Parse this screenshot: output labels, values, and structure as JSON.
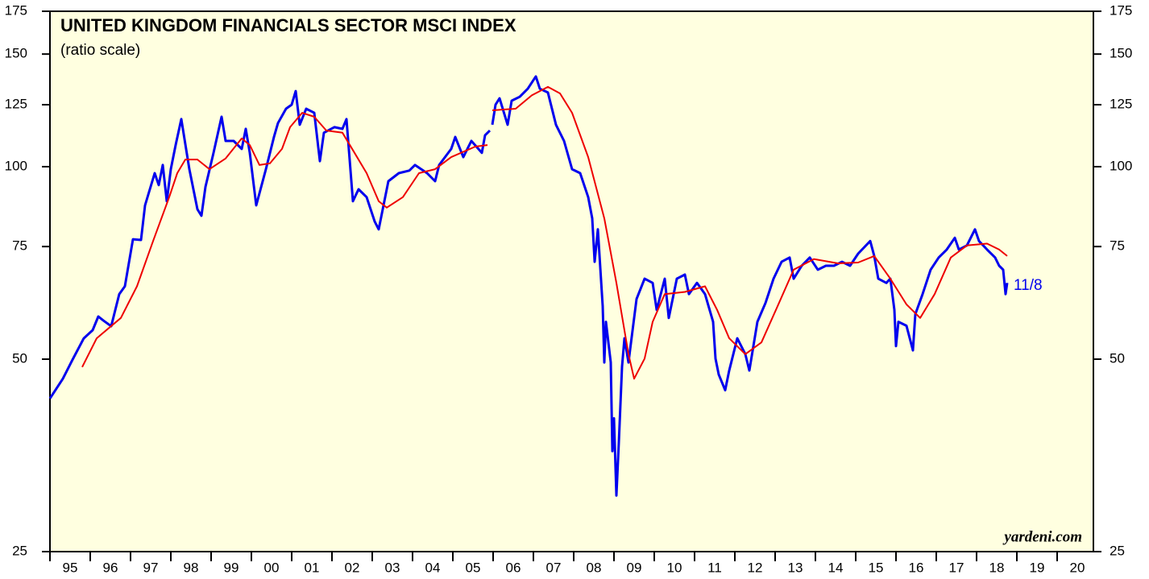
{
  "chart_data": {
    "type": "line",
    "title": "UNITED KINGDOM FINANCIALS SECTOR MSCI INDEX",
    "subtitle": "(ratio scale)",
    "source": "yardeni.com",
    "annotation": "11/8",
    "log_scale": true,
    "background": "#ffffe0",
    "ylim": [
      25,
      175
    ],
    "yticks": [
      25,
      50,
      75,
      100,
      125,
      150,
      175
    ],
    "xlim": [
      1995,
      2020.9
    ],
    "xticks": [
      {
        "value": 1995,
        "label": "95"
      },
      {
        "value": 1996,
        "label": "96"
      },
      {
        "value": 1997,
        "label": "97"
      },
      {
        "value": 1998,
        "label": "98"
      },
      {
        "value": 1999,
        "label": "99"
      },
      {
        "value": 2000,
        "label": "00"
      },
      {
        "value": 2001,
        "label": "01"
      },
      {
        "value": 2002,
        "label": "02"
      },
      {
        "value": 2003,
        "label": "03"
      },
      {
        "value": 2004,
        "label": "04"
      },
      {
        "value": 2005,
        "label": "05"
      },
      {
        "value": 2006,
        "label": "06"
      },
      {
        "value": 2007,
        "label": "07"
      },
      {
        "value": 2008,
        "label": "08"
      },
      {
        "value": 2009,
        "label": "09"
      },
      {
        "value": 2010,
        "label": "10"
      },
      {
        "value": 2011,
        "label": "11"
      },
      {
        "value": 2012,
        "label": "12"
      },
      {
        "value": 2013,
        "label": "13"
      },
      {
        "value": 2014,
        "label": "14"
      },
      {
        "value": 2015,
        "label": "15"
      },
      {
        "value": 2016,
        "label": "16"
      },
      {
        "value": 2017,
        "label": "17"
      },
      {
        "value": 2018,
        "label": "18"
      },
      {
        "value": 2019,
        "label": "19"
      },
      {
        "value": 2020,
        "label": "20"
      }
    ],
    "series": [
      {
        "color": "#0000ee",
        "width": 3,
        "x": [
          1995.0,
          1995.32,
          1995.56,
          1995.84,
          1996.06,
          1996.2,
          1996.32,
          1996.52,
          1996.72,
          1996.86,
          1997.06,
          1997.26,
          1997.36,
          1997.6,
          1997.7,
          1997.8,
          1997.9,
          1998.0,
          1998.12,
          1998.26,
          1998.46,
          1998.66,
          1998.76,
          1998.86,
          1999.06,
          1999.26,
          1999.36,
          1999.56,
          1999.76,
          1999.86,
          1999.96,
          2000.12,
          2000.36,
          2000.56,
          2000.66,
          2000.86,
          2001.0,
          2001.1,
          2001.2,
          2001.36,
          2001.56,
          2001.7,
          2001.8,
          2002.06,
          2002.26,
          2002.36,
          2002.52,
          2002.66,
          2002.86,
          2003.06,
          2003.16,
          2003.4,
          2003.66,
          2003.92,
          2004.06,
          2004.36,
          2004.56,
          2004.66,
          2004.96,
          2005.06,
          2005.26,
          2005.46,
          2005.72,
          2005.8,
          2005.92,
          2005.95,
          2005.98,
          2006.06,
          2006.16,
          2006.36,
          2006.46,
          2006.66,
          2006.86,
          2007.06,
          2007.16,
          2007.36,
          2007.56,
          2007.76,
          2007.96,
          2008.16,
          2008.36,
          2008.46,
          2008.52,
          2008.6,
          2008.72,
          2008.76,
          2008.8,
          2008.92,
          2008.96,
          2009.0,
          2009.06,
          2009.12,
          2009.2,
          2009.26,
          2009.36,
          2009.56,
          2009.76,
          2009.96,
          2010.06,
          2010.26,
          2010.36,
          2010.56,
          2010.76,
          2010.86,
          2011.06,
          2011.26,
          2011.46,
          2011.52,
          2011.6,
          2011.76,
          2011.86,
          2012.06,
          2012.26,
          2012.36,
          2012.56,
          2012.76,
          2012.96,
          2013.16,
          2013.36,
          2013.46,
          2013.66,
          2013.86,
          2014.06,
          2014.26,
          2014.46,
          2014.66,
          2014.86,
          2015.06,
          2015.36,
          2015.46,
          2015.56,
          2015.76,
          2015.86,
          2015.96,
          2016.0,
          2016.06,
          2016.26,
          2016.42,
          2016.48,
          2016.66,
          2016.86,
          2017.06,
          2017.26,
          2017.46,
          2017.56,
          2017.76,
          2017.96,
          2018.06,
          2018.26,
          2018.46,
          2018.56,
          2018.66,
          2018.72,
          2018.76
        ],
        "values": [
          43.4,
          46.6,
          49.9,
          53.9,
          55.5,
          58.3,
          57.5,
          56.3,
          63.2,
          65.0,
          77.0,
          76.8,
          87.0,
          97.7,
          93.6,
          100.6,
          88.3,
          99.1,
          108.1,
          118.7,
          99.1,
          85.8,
          83.8,
          93.0,
          105.1,
          119.7,
          109.7,
          109.7,
          106.6,
          114.6,
          105.1,
          87.0,
          99.1,
          111.3,
          117.0,
          123.2,
          125.0,
          131.3,
          116.3,
          123.2,
          121.4,
          102.0,
          113.0,
          115.3,
          114.6,
          118.7,
          88.3,
          92.2,
          89.6,
          82.1,
          79.8,
          94.9,
          97.7,
          98.6,
          100.6,
          97.7,
          94.9,
          100.6,
          106.6,
          111.3,
          103.5,
          109.7,
          105.1,
          112.0,
          113.9,
          null,
          116.3,
          125.0,
          127.9,
          116.3,
          126.8,
          128.6,
          132.4,
          138.4,
          132.4,
          130.6,
          116.3,
          109.7,
          99.1,
          97.7,
          89.6,
          83.0,
          71.0,
          79.8,
          60.5,
          49.4,
          57.2,
          49.4,
          35.9,
          40.4,
          30.6,
          37.0,
          48.7,
          53.9,
          49.4,
          62.1,
          66.8,
          65.8,
          59.7,
          66.8,
          58.0,
          66.8,
          67.8,
          63.2,
          65.8,
          63.2,
          57.2,
          50.1,
          47.3,
          44.7,
          48.0,
          53.9,
          50.9,
          48.0,
          57.2,
          61.2,
          66.8,
          71.0,
          72.1,
          66.8,
          70.0,
          72.1,
          69.0,
          70.0,
          70.0,
          71.0,
          70.0,
          73.1,
          76.5,
          72.5,
          66.8,
          65.8,
          66.8,
          59.7,
          52.4,
          57.2,
          56.4,
          51.6,
          58.8,
          63.2,
          69.0,
          72.1,
          74.2,
          77.4,
          74.2,
          75.3,
          79.8,
          76.5,
          74.2,
          72.1,
          70.0,
          69.0,
          63.2,
          65.8
        ]
      },
      {
        "color": "#ee0000",
        "width": 2,
        "x": [
          1995.8,
          1996.16,
          1996.76,
          1997.16,
          1997.56,
          1997.96,
          1998.16,
          1998.36,
          1998.66,
          1998.96,
          1999.36,
          1999.76,
          1999.96,
          2000.2,
          2000.46,
          2000.76,
          2000.96,
          2001.26,
          2001.56,
          2001.86,
          2002.26,
          2002.56,
          2002.86,
          2003.16,
          2003.36,
          2003.76,
          2004.16,
          2004.56,
          2004.96,
          2005.56,
          2005.86,
          2005.95,
          2005.98,
          2006.56,
          2006.96,
          2007.36,
          2007.66,
          2007.96,
          2008.36,
          2008.76,
          2009.06,
          2009.36,
          2009.5,
          2009.76,
          2009.96,
          2010.26,
          2010.76,
          2011.26,
          2011.56,
          2011.86,
          2012.26,
          2012.66,
          2013.06,
          2013.46,
          2013.96,
          2014.56,
          2015.06,
          2015.46,
          2015.86,
          2016.26,
          2016.6,
          2016.96,
          2017.36,
          2017.76,
          2018.26,
          2018.56,
          2018.76
        ],
        "values": [
          48.6,
          53.9,
          58.0,
          65.0,
          76.5,
          89.6,
          97.7,
          102.6,
          102.6,
          99.1,
          103.0,
          110.7,
          108.1,
          100.6,
          101.2,
          106.6,
          115.3,
          121.4,
          119.7,
          113.9,
          113.0,
          105.1,
          97.7,
          88.3,
          86.3,
          89.6,
          97.7,
          99.1,
          103.5,
          107.5,
          108.1,
          null,
          122.5,
          123.2,
          129.3,
          133.3,
          130.2,
          121.4,
          103.5,
          83.0,
          65.8,
          50.9,
          46.6,
          50.1,
          57.2,
          63.2,
          63.7,
          65.0,
          59.7,
          53.9,
          50.9,
          53.1,
          60.5,
          69.0,
          71.7,
          70.6,
          70.8,
          72.5,
          66.8,
          60.9,
          58.0,
          63.2,
          72.1,
          75.3,
          75.8,
          74.2,
          72.5
        ]
      }
    ]
  }
}
